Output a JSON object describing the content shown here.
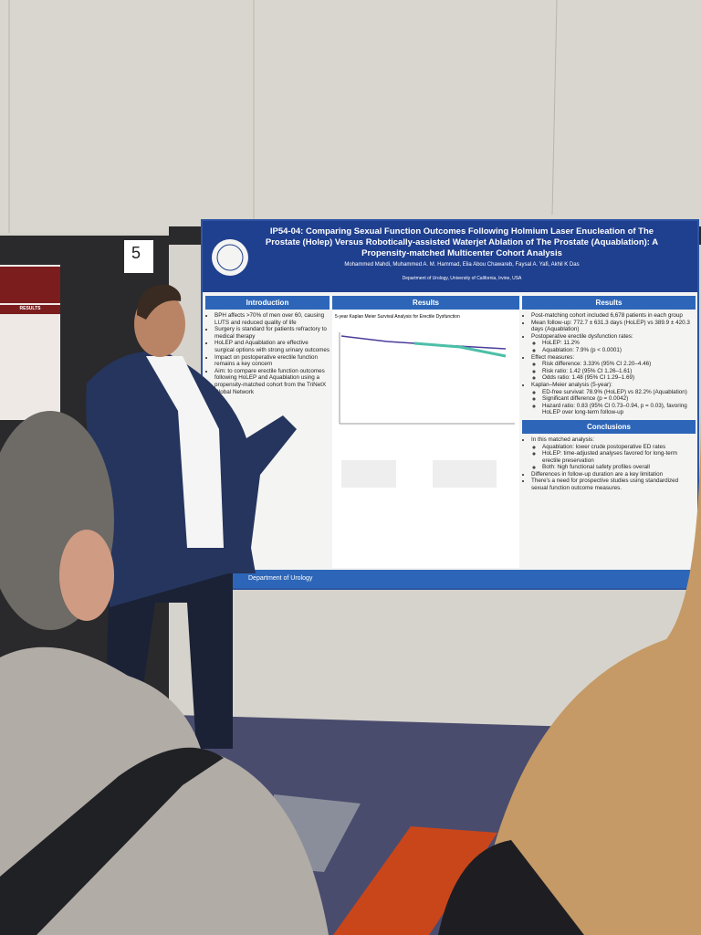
{
  "board_number": "5",
  "poster": {
    "title": "IP54-04: Comparing Sexual Function Outcomes Following Holmium Laser Enucleation of The Prostate (Holep) Versus Robotically-assisted Waterjet Ablation of The Prostate (Aquablation): A Propensity-matched Multicenter Cohort Analysis",
    "authors": "Mohammed Mahdi, Muhammed A. M. Hammad, Elia Abou Chawareb, Faysal A. Yafi, Akhil K Das",
    "affiliation": "Department of Urology, University of California, Irvine, USA",
    "introduction": {
      "heading": "Introduction",
      "items": [
        "BPH affects >70% of men over 60, causing LUTS and reduced quality of life",
        "Surgery is standard for patients refractory to medical therapy",
        "HoLEP and Aquablation are effective surgical options with strong urinary outcomes",
        "Impact on postoperative erectile function remains a key concern",
        "Aim: to compare erectile function outcomes following HoLEP and Aquablation using a propensity-matched cohort from the TriNetX Global Network"
      ]
    },
    "results_chart": {
      "heading": "Results",
      "chart_title": "5-year Kaplan Meier Survival Analysis for Erectile Dysfunction"
    },
    "results": {
      "heading": "Results",
      "items": [
        {
          "text": "Post-matching cohort included 6,678 patients in each group",
          "sub": []
        },
        {
          "text": "Mean follow-up: 772.7 ± 631.3 days (HoLEP) vs 389.9 ± 420.3 days (Aquablation)",
          "sub": []
        },
        {
          "text": "Postoperative erectile dysfunction rates:",
          "sub": [
            "HoLEP: 11.2%",
            "Aquablation: 7.9% (p < 0.0001)"
          ]
        },
        {
          "text": "Effect measures:",
          "sub": [
            "Risk difference: 3.33% (95% CI 2.20–4.46)",
            "Risk ratio: 1.42 (95% CI 1.26–1.61)",
            "Odds ratio: 1.48 (95% CI 1.29–1.69)"
          ]
        },
        {
          "text": "Kaplan–Meier analysis (5-year):",
          "sub": [
            "ED-free survival: 78.9% (HoLEP) vs 82.2% (Aquablation)",
            "Significant difference (p = 0.0042)",
            "Hazard ratio: 0.83 (95% CI 0.73–0.94, p = 0.03), favoring HoLEP over long-term follow-up"
          ]
        }
      ]
    },
    "conclusions": {
      "heading": "Conclusions",
      "items": [
        {
          "text": "In this matched analysis:",
          "sub": [
            "Aquablation: lower crude postoperative ED rates",
            "HoLEP: time-adjusted analyses favored for long-term erectile preservation",
            "Both: high functional safety profiles overall"
          ]
        },
        {
          "text": "Differences in follow-up duration are a key limitation",
          "sub": []
        },
        {
          "text": "There's a need for prospective studies using standardized sexual function outcome measures.",
          "sub": []
        }
      ]
    },
    "footer": "Department of Urology"
  },
  "left_poster": {
    "heading": "RESULTS"
  }
}
